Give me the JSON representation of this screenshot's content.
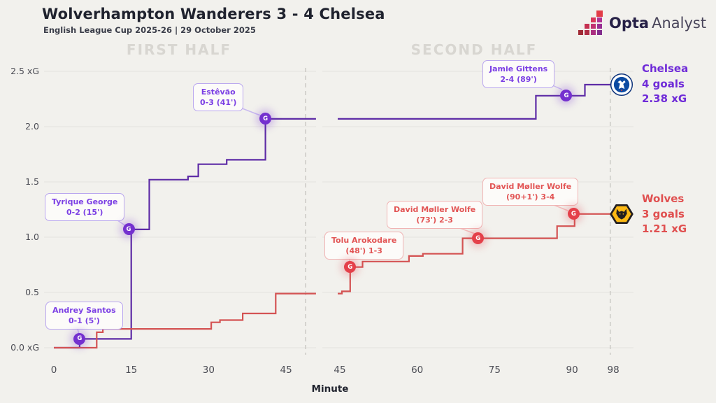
{
  "header": {
    "title": "Wolverhampton Wanderers 3 - 4 Chelsea",
    "subtitle": "English League Cup 2025-26 | 29 October 2025",
    "logo_bold": "Opta",
    "logo_regular": "Analyst"
  },
  "panels": {
    "first": "FIRST HALF",
    "second": "SECOND HALF"
  },
  "axis": {
    "x_label": "Minute",
    "y_ticks": [
      {
        "value": 2.5,
        "label": "2.5 xG"
      },
      {
        "value": 2.0,
        "label": "2.0"
      },
      {
        "value": 1.5,
        "label": "1.5"
      },
      {
        "value": 1.0,
        "label": "1.0"
      },
      {
        "value": 0.5,
        "label": "0.5"
      },
      {
        "value": 0.0,
        "label": "0.0 xG"
      }
    ]
  },
  "goal_marker_letter": "G",
  "annotations": {
    "santos": {
      "l1": "Andrey Santos",
      "l2": "0-1 (5')"
    },
    "george": {
      "l1": "Tyrique George",
      "l2": "0-2 (15')"
    },
    "estevao": {
      "l1": "Estêvão",
      "l2": "0-3 (41')"
    },
    "gittens": {
      "l1": "Jamie Gittens",
      "l2": "2-4 (89')"
    },
    "arokodare": {
      "l1": "Tolu Arokodare",
      "l2": "(48') 1-3"
    },
    "wolfe73": {
      "l1": "David Møller Wolfe",
      "l2": "(73') 2-3"
    },
    "wolfe91": {
      "l1": "David Møller Wolfe",
      "l2": "(90+1') 3-4"
    }
  },
  "summary": {
    "chelsea": {
      "name": "Chelsea",
      "goals": "4 goals",
      "xg": "2.38 xG",
      "color": "#6f2bd8"
    },
    "wolves": {
      "name": "Wolves",
      "goals": "3 goals",
      "xg": "1.21 xG",
      "color": "#e05050"
    }
  },
  "chart_data": {
    "type": "line",
    "subtype": "step-after cumulative xG race",
    "title": "Wolverhampton Wanderers 3 - 4 Chelsea",
    "xlabel": "Minute",
    "ylabel": "xG",
    "ylim": [
      0,
      2.5
    ],
    "grid": true,
    "y_gridlines": [
      0,
      0.5,
      1.0,
      1.5,
      2.0,
      2.5
    ],
    "x_ticks_first_half": [
      0,
      15,
      30,
      45
    ],
    "x_ticks_second_half": [
      45,
      60,
      75,
      90,
      98
    ],
    "dash_minutes": {
      "first_half_end": 48.8,
      "full_time": 97.4
    },
    "series": [
      {
        "name": "Chelsea",
        "color": "#5e2ca6",
        "marker_color": "#7430cf",
        "final_goals": 4,
        "final_xg": 2.38,
        "first_half": [
          [
            0,
            0
          ],
          [
            5,
            0.08
          ],
          [
            15,
            1.07
          ],
          [
            18.5,
            1.52
          ],
          [
            26,
            1.55
          ],
          [
            28,
            1.66
          ],
          [
            33.5,
            1.7
          ],
          [
            41,
            2.07
          ],
          [
            50.8,
            2.07
          ]
        ],
        "second_half": [
          [
            44.6,
            2.07
          ],
          [
            83,
            2.28
          ],
          [
            92.5,
            2.38
          ],
          [
            97.7,
            2.38
          ]
        ],
        "goals": [
          {
            "player": "Andrey Santos",
            "minute_label": "5'",
            "score": "0-1",
            "minute": 5,
            "xg": 0.08,
            "half": 1
          },
          {
            "player": "Tyrique George",
            "minute_label": "15'",
            "score": "0-2",
            "minute": 14.5,
            "xg": 1.07,
            "half": 1
          },
          {
            "player": "Estêvão",
            "minute_label": "41'",
            "score": "0-3",
            "minute": 41,
            "xg": 2.07,
            "half": 1
          },
          {
            "player": "Jamie Gittens",
            "minute_label": "89'",
            "score": "2-4",
            "minute": 88.9,
            "xg": 2.28,
            "half": 2
          }
        ]
      },
      {
        "name": "Wolves",
        "color": "#d45353",
        "marker_color": "#e4404a",
        "final_goals": 3,
        "final_xg": 1.21,
        "first_half": [
          [
            0,
            0
          ],
          [
            8.3,
            0.14
          ],
          [
            9.5,
            0.17
          ],
          [
            30.5,
            0.23
          ],
          [
            32.2,
            0.25
          ],
          [
            36.6,
            0.31
          ],
          [
            43,
            0.49
          ],
          [
            50.8,
            0.49
          ]
        ],
        "second_half": [
          [
            44.6,
            0.49
          ],
          [
            45.4,
            0.51
          ],
          [
            47,
            0.73
          ],
          [
            49.4,
            0.78
          ],
          [
            58.4,
            0.83
          ],
          [
            61.1,
            0.85
          ],
          [
            68.8,
            0.99
          ],
          [
            87.1,
            1.1
          ],
          [
            90.5,
            1.21
          ],
          [
            97.7,
            1.21
          ]
        ],
        "goals": [
          {
            "player": "Tolu Arokodare",
            "minute_label": "48'",
            "score": "1-3",
            "minute": 47,
            "xg": 0.73,
            "half": 2
          },
          {
            "player": "David Møller Wolfe",
            "minute_label": "73'",
            "score": "2-3",
            "minute": 71.8,
            "xg": 0.99,
            "half": 2
          },
          {
            "player": "David Møller Wolfe",
            "minute_label": "90+1'",
            "score": "3-4",
            "minute": 90.3,
            "xg": 1.21,
            "half": 2
          }
        ]
      }
    ]
  }
}
